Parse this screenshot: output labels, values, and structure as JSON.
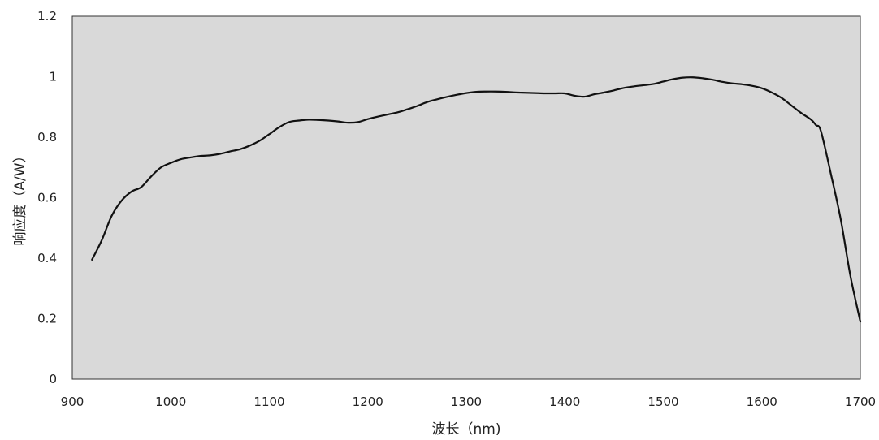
{
  "chart_data": {
    "type": "line",
    "title": "",
    "xlabel": "波长（nm)",
    "ylabel": "响应度（A/W）",
    "xlim": [
      900,
      1700
    ],
    "ylim": [
      0,
      1.2
    ],
    "xticks": [
      900,
      1000,
      1100,
      1200,
      1300,
      1400,
      1500,
      1600,
      1700
    ],
    "xtick_labels": [
      "900",
      "1000",
      "1100",
      "1200",
      "1300",
      "1400",
      "1500",
      "1600",
      "1700"
    ],
    "yticks": [
      0,
      0.2,
      0.4,
      0.6,
      0.8,
      1,
      1.2
    ],
    "ytick_labels": [
      "0",
      "0.2",
      "0.4",
      "0.6",
      "0.8",
      "1",
      "1.2"
    ],
    "grid": false,
    "legend": "none",
    "plot_background": "#d9d9d9",
    "line_color": "#111111",
    "series": [
      {
        "x": [
          920,
          930,
          940,
          950,
          960,
          970,
          980,
          990,
          1000,
          1010,
          1020,
          1030,
          1040,
          1050,
          1060,
          1070,
          1080,
          1090,
          1100,
          1110,
          1120,
          1130,
          1140,
          1150,
          1160,
          1170,
          1180,
          1190,
          1200,
          1210,
          1220,
          1230,
          1240,
          1250,
          1260,
          1270,
          1280,
          1290,
          1300,
          1310,
          1320,
          1330,
          1340,
          1350,
          1360,
          1370,
          1380,
          1390,
          1400,
          1410,
          1420,
          1430,
          1440,
          1450,
          1460,
          1470,
          1480,
          1490,
          1500,
          1510,
          1520,
          1530,
          1540,
          1550,
          1560,
          1570,
          1580,
          1590,
          1600,
          1610,
          1620,
          1630,
          1640,
          1650,
          1655,
          1660,
          1670,
          1680,
          1690,
          1700
        ],
        "y": [
          0.395,
          0.46,
          0.54,
          0.59,
          0.62,
          0.635,
          0.67,
          0.7,
          0.715,
          0.727,
          0.733,
          0.738,
          0.74,
          0.745,
          0.753,
          0.76,
          0.772,
          0.788,
          0.81,
          0.833,
          0.85,
          0.855,
          0.858,
          0.857,
          0.855,
          0.852,
          0.848,
          0.85,
          0.86,
          0.868,
          0.875,
          0.882,
          0.892,
          0.903,
          0.916,
          0.925,
          0.933,
          0.94,
          0.946,
          0.95,
          0.951,
          0.951,
          0.95,
          0.948,
          0.947,
          0.946,
          0.945,
          0.945,
          0.945,
          0.937,
          0.934,
          0.942,
          0.948,
          0.955,
          0.963,
          0.968,
          0.972,
          0.976,
          0.984,
          0.992,
          0.997,
          0.998,
          0.995,
          0.99,
          0.983,
          0.978,
          0.975,
          0.97,
          0.962,
          0.948,
          0.93,
          0.905,
          0.88,
          0.858,
          0.84,
          0.82,
          0.68,
          0.53,
          0.34,
          0.19
        ]
      }
    ]
  }
}
